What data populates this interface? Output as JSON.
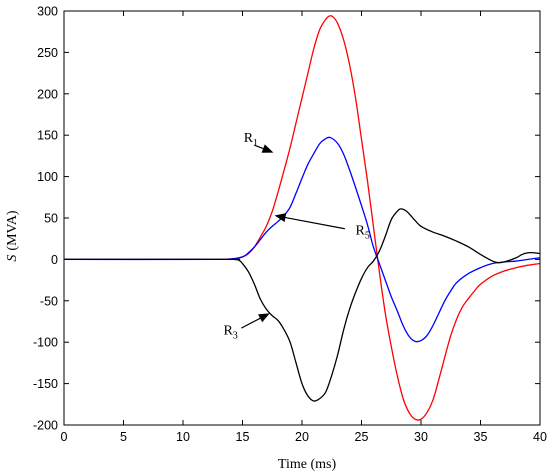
{
  "chart_data": {
    "type": "line",
    "xlabel": "Time (ms)",
    "ylabel_var": "S",
    "ylabel_unit": "(MVA)",
    "xlim": [
      0,
      40
    ],
    "ylim": [
      -200,
      300
    ],
    "xticks": [
      0,
      5,
      10,
      15,
      20,
      25,
      30,
      35,
      40
    ],
    "yticks": [
      300,
      250,
      200,
      150,
      100,
      50,
      0,
      -50,
      -100,
      -150,
      -200
    ],
    "grid": false,
    "series": [
      {
        "name": "R1",
        "color": "#ff0000",
        "points": [
          [
            0,
            0
          ],
          [
            12,
            0
          ],
          [
            13.5,
            0.2
          ],
          [
            14.5,
            1
          ],
          [
            15,
            3
          ],
          [
            15.5,
            7
          ],
          [
            16,
            15
          ],
          [
            16.5,
            27
          ],
          [
            17,
            40
          ],
          [
            17.5,
            58
          ],
          [
            18,
            82
          ],
          [
            18.5,
            108
          ],
          [
            19,
            135
          ],
          [
            19.5,
            165
          ],
          [
            20,
            195
          ],
          [
            20.5,
            225
          ],
          [
            21,
            255
          ],
          [
            21.5,
            278
          ],
          [
            22,
            290
          ],
          [
            22.3,
            294
          ],
          [
            22.6,
            293
          ],
          [
            23,
            285
          ],
          [
            23.5,
            265
          ],
          [
            24,
            235
          ],
          [
            24.5,
            195
          ],
          [
            25,
            145
          ],
          [
            25.5,
            95
          ],
          [
            26,
            40
          ],
          [
            26.5,
            -15
          ],
          [
            27,
            -65
          ],
          [
            27.5,
            -105
          ],
          [
            28,
            -140
          ],
          [
            28.5,
            -168
          ],
          [
            29,
            -185
          ],
          [
            29.5,
            -193
          ],
          [
            30,
            -193
          ],
          [
            30.5,
            -185
          ],
          [
            31,
            -170
          ],
          [
            31.5,
            -145
          ],
          [
            32,
            -118
          ],
          [
            32.5,
            -92
          ],
          [
            33,
            -72
          ],
          [
            33.5,
            -57
          ],
          [
            34,
            -47
          ],
          [
            34.5,
            -38
          ],
          [
            35,
            -30
          ],
          [
            36,
            -20
          ],
          [
            37,
            -14
          ],
          [
            38,
            -10
          ],
          [
            39,
            -7
          ],
          [
            40,
            -5
          ]
        ]
      },
      {
        "name": "R5",
        "color": "#0000ff",
        "points": [
          [
            0,
            0
          ],
          [
            13,
            0
          ],
          [
            14,
            0.5
          ],
          [
            15,
            3
          ],
          [
            15.5,
            8
          ],
          [
            16,
            15
          ],
          [
            16.5,
            24
          ],
          [
            17,
            33
          ],
          [
            17.5,
            40
          ],
          [
            18,
            46
          ],
          [
            18.5,
            53
          ],
          [
            19,
            63
          ],
          [
            19.5,
            80
          ],
          [
            20,
            98
          ],
          [
            20.5,
            115
          ],
          [
            21,
            128
          ],
          [
            21.5,
            140
          ],
          [
            22,
            146
          ],
          [
            22.4,
            147
          ],
          [
            23,
            140
          ],
          [
            23.5,
            127
          ],
          [
            24,
            108
          ],
          [
            24.5,
            87
          ],
          [
            25,
            65
          ],
          [
            25.5,
            42
          ],
          [
            26,
            15
          ],
          [
            26.5,
            -5
          ],
          [
            27,
            -25
          ],
          [
            27.5,
            -45
          ],
          [
            28,
            -62
          ],
          [
            28.5,
            -80
          ],
          [
            29,
            -93
          ],
          [
            29.5,
            -99
          ],
          [
            30,
            -98
          ],
          [
            30.5,
            -92
          ],
          [
            31,
            -80
          ],
          [
            31.5,
            -65
          ],
          [
            32,
            -50
          ],
          [
            32.5,
            -38
          ],
          [
            33,
            -28
          ],
          [
            34,
            -17
          ],
          [
            35,
            -10
          ],
          [
            36,
            -5
          ],
          [
            37,
            -3
          ],
          [
            38,
            -2
          ],
          [
            39,
            0
          ],
          [
            40,
            2
          ]
        ]
      },
      {
        "name": "R3",
        "color": "#000000",
        "points": [
          [
            0,
            0
          ],
          [
            13.5,
            0
          ],
          [
            14.3,
            0
          ],
          [
            14.7,
            -1
          ],
          [
            15,
            -5
          ],
          [
            15.5,
            -15
          ],
          [
            16,
            -30
          ],
          [
            16.5,
            -48
          ],
          [
            17,
            -60
          ],
          [
            17.5,
            -68
          ],
          [
            18,
            -74
          ],
          [
            18.5,
            -85
          ],
          [
            19,
            -100
          ],
          [
            19.5,
            -125
          ],
          [
            20,
            -150
          ],
          [
            20.5,
            -165
          ],
          [
            21,
            -171
          ],
          [
            21.5,
            -168
          ],
          [
            22,
            -160
          ],
          [
            22.5,
            -140
          ],
          [
            23,
            -115
          ],
          [
            23.5,
            -85
          ],
          [
            24,
            -60
          ],
          [
            24.5,
            -40
          ],
          [
            25,
            -23
          ],
          [
            25.5,
            -10
          ],
          [
            26,
            -2
          ],
          [
            26.5,
            10
          ],
          [
            27,
            28
          ],
          [
            27.5,
            48
          ],
          [
            28,
            58
          ],
          [
            28.3,
            61
          ],
          [
            28.8,
            58
          ],
          [
            29.5,
            47
          ],
          [
            30,
            40
          ],
          [
            31,
            33
          ],
          [
            32,
            28
          ],
          [
            33,
            22
          ],
          [
            34,
            15
          ],
          [
            35,
            6
          ],
          [
            36,
            -2
          ],
          [
            36.5,
            -4
          ],
          [
            37,
            -3
          ],
          [
            38,
            2
          ],
          [
            38.5,
            6
          ],
          [
            39,
            8
          ],
          [
            39.5,
            8
          ],
          [
            40,
            7
          ]
        ]
      }
    ],
    "annotations": [
      {
        "label": "R",
        "sub": "1",
        "text_at": [
          15.1,
          142
        ],
        "tip": [
          17.6,
          129
        ],
        "tail": [
          16.0,
          138
        ]
      },
      {
        "label": "R",
        "sub": "5",
        "text_at": [
          24.5,
          30
        ],
        "tip": [
          17.7,
          53
        ],
        "tail": [
          23.6,
          37
        ]
      },
      {
        "label": "R",
        "sub": "3",
        "text_at": [
          13.4,
          -91
        ],
        "tip": [
          17.3,
          -65
        ],
        "tail": [
          14.9,
          -83
        ]
      }
    ]
  }
}
